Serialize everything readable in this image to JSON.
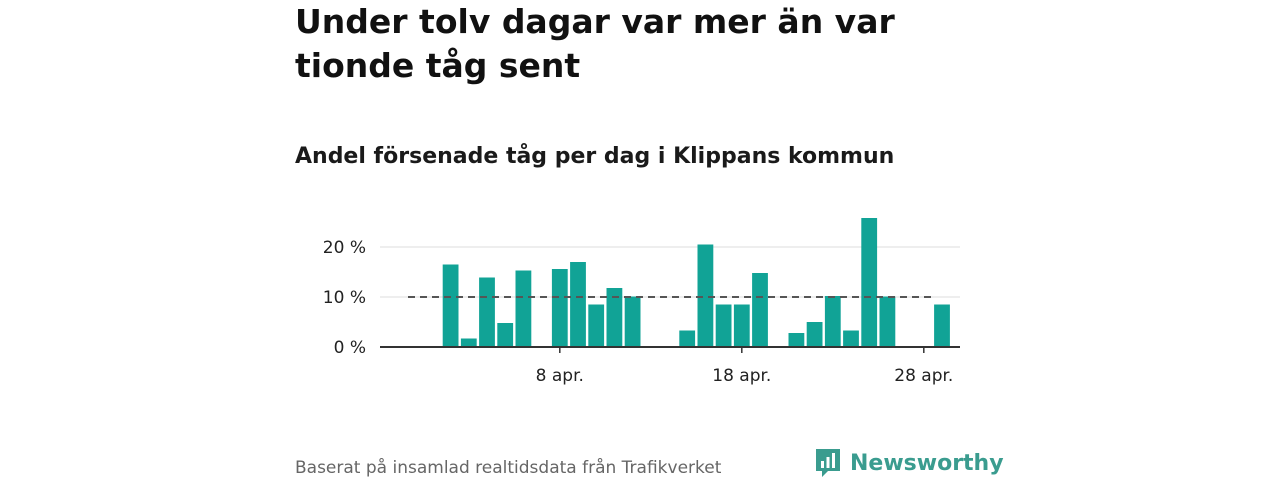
{
  "header": {
    "title": "Under tolv dagar var mer än var tionde tåg sent",
    "subtitle": "Andel försenade tåg per dag i Klippans kommun"
  },
  "footer": {
    "source": "Baserat på insamlad realtidsdata från Trafikverket",
    "brand": "Newsworthy",
    "brand_icon": "bar-chart-speech-icon"
  },
  "colors": {
    "bar": "#11a396",
    "reference_line": "#555555",
    "grid": "#dddddd",
    "brand": "#3a9c8f"
  },
  "chart_data": {
    "type": "bar",
    "categories": [
      "1 apr.",
      "2 apr.",
      "3 apr.",
      "4 apr.",
      "5 apr.",
      "6 apr.",
      "7 apr.",
      "8 apr.",
      "9 apr.",
      "10 apr.",
      "11 apr.",
      "12 apr.",
      "13 apr.",
      "14 apr.",
      "15 apr.",
      "16 apr.",
      "17 apr.",
      "18 apr.",
      "19 apr.",
      "20 apr.",
      "21 apr.",
      "22 apr.",
      "23 apr.",
      "24 apr.",
      "25 apr.",
      "26 apr.",
      "27 apr.",
      "28 apr.",
      "29 apr.",
      "30 apr."
    ],
    "values": [
      null,
      16.5,
      1.7,
      13.9,
      4.8,
      15.3,
      null,
      15.6,
      17.0,
      8.5,
      11.8,
      10.1,
      null,
      null,
      3.3,
      20.5,
      8.5,
      8.5,
      14.8,
      null,
      2.8,
      5.0,
      10.2,
      3.3,
      25.8,
      10.1,
      null,
      null,
      8.5,
      null
    ],
    "reference_line": 10,
    "ylim": [
      0,
      26
    ],
    "yticks": [
      0,
      10,
      20
    ],
    "ytick_labels": [
      "0 %",
      "10 %",
      "20 %"
    ],
    "xtick_labels": [
      {
        "category": "8 apr.",
        "label": "8 apr."
      },
      {
        "category": "18 apr.",
        "label": "18 apr."
      },
      {
        "category": "28 apr.",
        "label": "28 apr."
      }
    ],
    "grid": true,
    "legend": "none"
  }
}
